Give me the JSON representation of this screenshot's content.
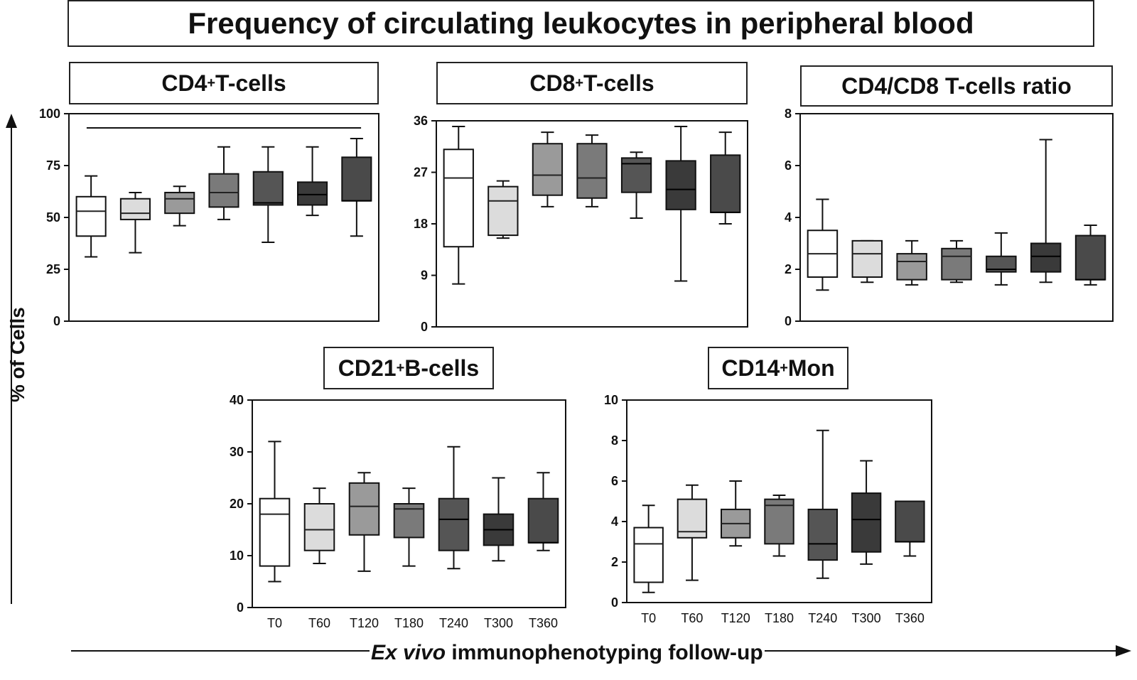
{
  "figure": {
    "title": "Frequency of circulating leukocytes in peripheral blood",
    "ylabel": "% of Cells",
    "xlabel_italic": "Ex vivo",
    "xlabel_rest": " immunophenotyping follow-up"
  },
  "fills": [
    "#ffffff",
    "#dcdcdc",
    "#9a9a9a",
    "#7a7a7a",
    "#555555",
    "#3a3a3a",
    "#4a4a4a"
  ],
  "panels": {
    "cd4": {
      "title_main": "CD4",
      "title_sup": "+",
      "title_rest": " T-cells"
    },
    "cd8": {
      "title_main": "CD8",
      "title_sup": "+",
      "title_rest": " T-cells"
    },
    "ratio": {
      "title_main": "CD4/CD8 T-cells ratio",
      "title_sup": "",
      "title_rest": ""
    },
    "cd21": {
      "title_main": "CD21",
      "title_sup": "+",
      "title_rest": " B-cells"
    },
    "cd14": {
      "title_main": "CD14",
      "title_sup": "+",
      "title_rest": " Mon"
    }
  },
  "chart_data": [
    {
      "type": "box",
      "id": "cd4",
      "title": "CD4+ T-cells",
      "categories": [
        "T0",
        "T60",
        "T120",
        "T180",
        "T240",
        "T300",
        "T360"
      ],
      "ylim": [
        0,
        100
      ],
      "yticks": [
        0,
        25,
        50,
        75,
        100
      ],
      "show_xticklabels": false,
      "significance_bar": true,
      "boxes": [
        {
          "min": 31,
          "q1": 41,
          "median": 53,
          "q3": 60,
          "max": 70
        },
        {
          "min": 33,
          "q1": 49,
          "median": 52,
          "q3": 59,
          "max": 62
        },
        {
          "min": 46,
          "q1": 52,
          "median": 59,
          "q3": 62,
          "max": 65
        },
        {
          "min": 49,
          "q1": 55,
          "median": 62,
          "q3": 71,
          "max": 84
        },
        {
          "min": 38,
          "q1": 56,
          "median": 57,
          "q3": 72,
          "max": 84
        },
        {
          "min": 51,
          "q1": 56,
          "median": 61,
          "q3": 67,
          "max": 84
        },
        {
          "min": 41,
          "q1": 58,
          "median": 58,
          "q3": 79,
          "max": 88
        }
      ]
    },
    {
      "type": "box",
      "id": "cd8",
      "title": "CD8+ T-cells",
      "categories": [
        "T0",
        "T60",
        "T120",
        "T180",
        "T240",
        "T300",
        "T360"
      ],
      "ylim": [
        0,
        36
      ],
      "yticks": [
        0,
        9,
        18,
        27,
        36
      ],
      "show_xticklabels": false,
      "boxes": [
        {
          "min": 7.5,
          "q1": 14,
          "median": 26,
          "q3": 31,
          "max": 35
        },
        {
          "min": 15.5,
          "q1": 16,
          "median": 22,
          "q3": 24.5,
          "max": 25.5
        },
        {
          "min": 21,
          "q1": 23,
          "median": 26.5,
          "q3": 32,
          "max": 34
        },
        {
          "min": 21,
          "q1": 22.5,
          "median": 26,
          "q3": 32,
          "max": 33.5
        },
        {
          "min": 19,
          "q1": 23.5,
          "median": 28.5,
          "q3": 29.5,
          "max": 30.5
        },
        {
          "min": 8,
          "q1": 20.5,
          "median": 24,
          "q3": 29,
          "max": 35
        },
        {
          "min": 18,
          "q1": 20,
          "median": 20,
          "q3": 30,
          "max": 34
        }
      ]
    },
    {
      "type": "box",
      "id": "ratio",
      "title": "CD4/CD8 T-cells ratio",
      "categories": [
        "T0",
        "T60",
        "T120",
        "T180",
        "T240",
        "T300",
        "T360"
      ],
      "ylim": [
        0,
        8
      ],
      "yticks": [
        0,
        2,
        4,
        6,
        8
      ],
      "show_xticklabels": false,
      "boxes": [
        {
          "min": 1.2,
          "q1": 1.7,
          "median": 2.6,
          "q3": 3.5,
          "max": 4.7
        },
        {
          "min": 1.5,
          "q1": 1.7,
          "median": 2.6,
          "q3": 3.1,
          "max": 3.1
        },
        {
          "min": 1.4,
          "q1": 1.6,
          "median": 2.3,
          "q3": 2.6,
          "max": 3.1
        },
        {
          "min": 1.5,
          "q1": 1.6,
          "median": 2.5,
          "q3": 2.8,
          "max": 3.1
        },
        {
          "min": 1.4,
          "q1": 1.9,
          "median": 2.0,
          "q3": 2.5,
          "max": 3.4
        },
        {
          "min": 1.5,
          "q1": 1.9,
          "median": 2.5,
          "q3": 3.0,
          "max": 7.0
        },
        {
          "min": 1.4,
          "q1": 1.6,
          "median": 1.6,
          "q3": 3.3,
          "max": 3.7
        }
      ]
    },
    {
      "type": "box",
      "id": "cd21",
      "title": "CD21+ B-cells",
      "categories": [
        "T0",
        "T60",
        "T120",
        "T180",
        "T240",
        "T300",
        "T360"
      ],
      "ylim": [
        0,
        40
      ],
      "yticks": [
        0,
        10,
        20,
        30,
        40
      ],
      "show_xticklabels": true,
      "boxes": [
        {
          "min": 5,
          "q1": 8,
          "median": 18,
          "q3": 21,
          "max": 32
        },
        {
          "min": 8.5,
          "q1": 11,
          "median": 15,
          "q3": 20,
          "max": 23
        },
        {
          "min": 7,
          "q1": 14,
          "median": 19.5,
          "q3": 24,
          "max": 26
        },
        {
          "min": 8,
          "q1": 13.5,
          "median": 19,
          "q3": 20,
          "max": 23
        },
        {
          "min": 7.5,
          "q1": 11,
          "median": 17,
          "q3": 21,
          "max": 31
        },
        {
          "min": 9,
          "q1": 12,
          "median": 15,
          "q3": 18,
          "max": 25
        },
        {
          "min": 11,
          "q1": 12.5,
          "median": 12.5,
          "q3": 21,
          "max": 26
        }
      ]
    },
    {
      "type": "box",
      "id": "cd14",
      "title": "CD14+ Mon",
      "categories": [
        "T0",
        "T60",
        "T120",
        "T180",
        "T240",
        "T300",
        "T360"
      ],
      "ylim": [
        0,
        10
      ],
      "yticks": [
        0,
        2,
        4,
        6,
        8,
        10
      ],
      "show_xticklabels": true,
      "boxes": [
        {
          "min": 0.5,
          "q1": 1.0,
          "median": 2.9,
          "q3": 3.7,
          "max": 4.8
        },
        {
          "min": 1.1,
          "q1": 3.2,
          "median": 3.5,
          "q3": 5.1,
          "max": 5.8
        },
        {
          "min": 2.8,
          "q1": 3.2,
          "median": 3.9,
          "q3": 4.6,
          "max": 6.0
        },
        {
          "min": 2.3,
          "q1": 2.9,
          "median": 4.8,
          "q3": 5.1,
          "max": 5.3
        },
        {
          "min": 1.2,
          "q1": 2.1,
          "median": 2.9,
          "q3": 4.6,
          "max": 8.5
        },
        {
          "min": 1.9,
          "q1": 2.5,
          "median": 4.1,
          "q3": 5.4,
          "max": 7.0
        },
        {
          "min": 2.3,
          "q1": 3.0,
          "median": 3.0,
          "q3": 5.0,
          "max": 5.0
        }
      ]
    }
  ]
}
